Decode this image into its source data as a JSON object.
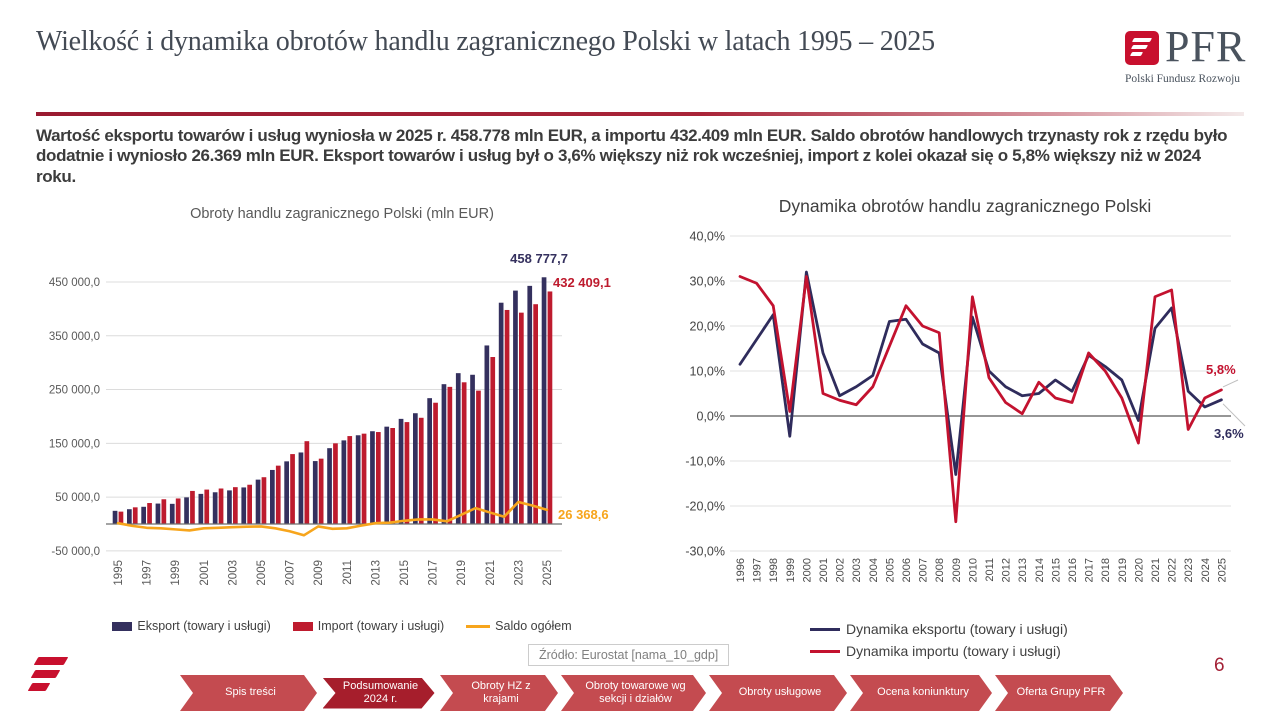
{
  "slide": {
    "title": "Wielkość i dynamika obrotów handlu zagranicznego Polski w latach 1995 – 2025",
    "summary": "Wartość eksportu towarów i usług wyniosła w 2025 r. 458.778 mln EUR, a importu 432.409 mln EUR. Saldo obrotów handlowych trzynasty rok z rzędu było dodatnie i wyniosło 26.369 mln EUR. Eksport towarów i usług był o 3,6% większy niż rok wcześniej, import z kolei okazał się o 5,8% większy niż w 2024 roku.",
    "source": "Źródło: Eurostat [nama_10_gdp]",
    "page_number": "6"
  },
  "logo": {
    "brand": "PFR",
    "brand_sub": "Polski Fundusz Rozwoju"
  },
  "colors": {
    "export_navy": "#34305E",
    "import_red": "#BE1B2E",
    "saldo_orange": "#F7A51C",
    "dyn_export_navy": "#2F2C5C",
    "dyn_import_red": "#C3122F",
    "accent_red": "#A61E2C",
    "nav_red": "#C44B50",
    "header_rule_red": "#9A1B31"
  },
  "nav": {
    "items": [
      {
        "label": "Spis treści",
        "active": false
      },
      {
        "label": "Podsumowanie 2024 r.",
        "active": true
      },
      {
        "label": "Obroty HZ z krajami",
        "active": false
      },
      {
        "label": "Obroty towarowe wg sekcji i działów",
        "active": false
      },
      {
        "label": "Obroty usługowe",
        "active": false
      },
      {
        "label": "Ocena koniunktury",
        "active": false
      },
      {
        "label": "Oferta Grupy PFR",
        "active": false
      }
    ]
  },
  "chart_data": [
    {
      "type": "bar",
      "title": "Obroty handlu zagranicznego Polski (mln EUR)",
      "xlabel": "",
      "ylabel": "",
      "ylim": [
        -50000,
        475000
      ],
      "grid": true,
      "legend_position": "bottom",
      "categories": [
        1995,
        1996,
        1997,
        1998,
        1999,
        2000,
        2001,
        2002,
        2003,
        2004,
        2005,
        2006,
        2007,
        2008,
        2009,
        2010,
        2011,
        2012,
        2013,
        2014,
        2015,
        2016,
        2017,
        2018,
        2019,
        2020,
        2021,
        2022,
        2023,
        2024,
        2025
      ],
      "series": [
        {
          "name": "Eksport (towary i usługi)",
          "type": "bar",
          "color": "#34305E",
          "values": [
            24500,
            27500,
            32000,
            38000,
            37500,
            49500,
            56000,
            59000,
            62500,
            68000,
            82500,
            100500,
            116500,
            133000,
            117000,
            141000,
            155500,
            165000,
            172500,
            181000,
            195500,
            206000,
            234000,
            260000,
            280500,
            277500,
            332000,
            411500,
            434000,
            442800,
            458777.7
          ]
        },
        {
          "name": "Import (towary i usługi)",
          "type": "bar",
          "color": "#BE1B2E",
          "values": [
            23000,
            31000,
            39000,
            46000,
            47500,
            61500,
            64000,
            66000,
            68500,
            73000,
            87000,
            108500,
            130000,
            154000,
            121500,
            150000,
            163500,
            168000,
            171000,
            178500,
            189500,
            197500,
            225500,
            255000,
            263500,
            248000,
            310500,
            398000,
            393000,
            408700,
            432409.1
          ]
        },
        {
          "name": "Saldo ogółem",
          "type": "line",
          "color": "#F7A51C",
          "values": [
            1500,
            -3500,
            -7000,
            -8000,
            -10000,
            -12000,
            -8000,
            -7000,
            -6000,
            -5000,
            -4500,
            -8000,
            -13500,
            -21000,
            -4500,
            -9000,
            -8000,
            -3000,
            1500,
            2500,
            6000,
            8500,
            8500,
            5000,
            17000,
            29500,
            21500,
            13500,
            41000,
            34100,
            26368.6
          ]
        }
      ],
      "yticks": [
        {
          "v": 450000,
          "label": "450 000,0"
        },
        {
          "v": 350000,
          "label": "350 000,0"
        },
        {
          "v": 250000,
          "label": "250 000,0"
        },
        {
          "v": 150000,
          "label": "150 000,0"
        },
        {
          "v": 50000,
          "label": "50 000,0"
        },
        {
          "v": -50000,
          "label": "-50 000,0"
        }
      ],
      "xtick_labels": [
        "1995",
        "1997",
        "1999",
        "2001",
        "2003",
        "2005",
        "2007",
        "2009",
        "2011",
        "2013",
        "2015",
        "2017",
        "2019",
        "2021",
        "2023",
        "2025"
      ],
      "annotations": [
        {
          "text": "458 777,7",
          "series": "Eksport (towary i usługi)",
          "year": 2025
        },
        {
          "text": "432 409,1",
          "series": "Import (towary i usługi)",
          "year": 2025
        },
        {
          "text": "26 368,6",
          "series": "Saldo ogółem",
          "year": 2025
        }
      ]
    },
    {
      "type": "line",
      "title": "Dynamika obrotów handlu zagranicznego Polski",
      "xlabel": "",
      "ylabel": "",
      "ylim": [
        -30,
        40
      ],
      "grid": true,
      "legend_position": "bottom",
      "categories": [
        1996,
        1997,
        1998,
        1999,
        2000,
        2001,
        2002,
        2003,
        2004,
        2005,
        2006,
        2007,
        2008,
        2009,
        2010,
        2011,
        2012,
        2013,
        2014,
        2015,
        2016,
        2017,
        2018,
        2019,
        2020,
        2021,
        2022,
        2023,
        2024,
        2025
      ],
      "series": [
        {
          "name": "Dynamika eksportu (towary i usługi)",
          "color": "#2F2C5C",
          "values": [
            11.5,
            17,
            22.5,
            -4.5,
            32,
            14,
            4.5,
            6.5,
            9,
            21,
            21.5,
            16,
            14,
            -13,
            22,
            10,
            6.5,
            4.5,
            5,
            8,
            5.5,
            13.5,
            11,
            8,
            -1,
            19.5,
            24,
            5.5,
            2,
            3.6
          ]
        },
        {
          "name": "Dynamika importu (towary i usługi)",
          "color": "#C3122F",
          "values": [
            31,
            29.5,
            24.5,
            1,
            31,
            5,
            3.5,
            2.5,
            6.5,
            15.5,
            24.5,
            20,
            18.5,
            -23.5,
            26.5,
            8.5,
            3,
            0.5,
            7.5,
            4,
            3,
            14,
            10,
            4,
            -6,
            26.5,
            28,
            -3,
            4,
            5.8
          ]
        }
      ],
      "yticks": [
        {
          "v": 40,
          "label": "40,0%"
        },
        {
          "v": 30,
          "label": "30,0%"
        },
        {
          "v": 20,
          "label": "20,0%"
        },
        {
          "v": 10,
          "label": "10,0%"
        },
        {
          "v": 0,
          "label": "0,0%"
        },
        {
          "v": -10,
          "label": "-10,0%"
        },
        {
          "v": -20,
          "label": "-20,0%"
        },
        {
          "v": -30,
          "label": "-30,0%"
        }
      ],
      "annotations": [
        {
          "text": "5,8%",
          "series": "Dynamika importu (towary i usługi)",
          "year": 2025,
          "color": "#C3122F"
        },
        {
          "text": "3,6%",
          "series": "Dynamika eksportu (towary i usługi)",
          "year": 2025,
          "color": "#2F2C5C"
        }
      ]
    }
  ]
}
